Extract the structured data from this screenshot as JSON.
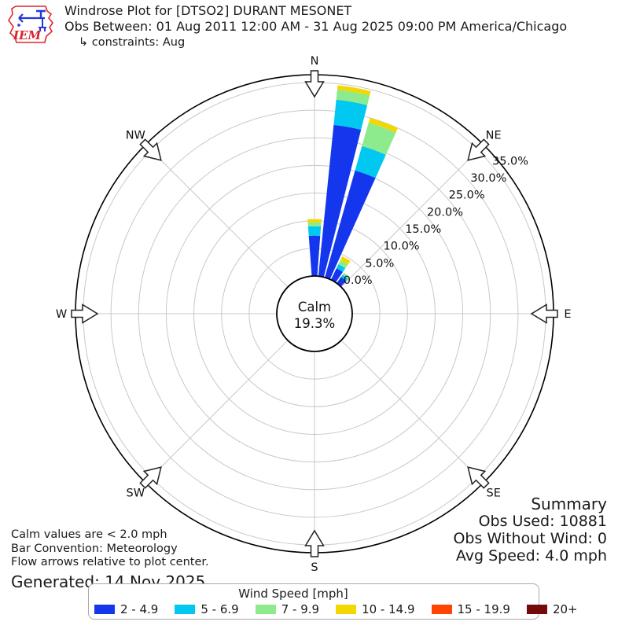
{
  "header": {
    "title": "Windrose Plot for [DTSO2] DURANT MESONET",
    "subtitle": "Obs Between: 01 Aug 2011 12:00 AM - 31 Aug 2025 09:00 PM America/Chicago",
    "constraints": "↳ constraints: Aug",
    "logo_text": "IEM"
  },
  "summary": {
    "title": "Summary",
    "obs_used": "Obs Used: 10881",
    "obs_without_wind": "Obs Without Wind: 0",
    "avg_speed": "Avg Speed: 4.0 mph"
  },
  "footnotes": {
    "calm_note": "Calm values are < 2.0 mph",
    "convention_note": "Bar Convention: Meteorology",
    "arrows_note": "Flow arrows relative to plot center.",
    "generated": "Generated: 14 Nov 2025"
  },
  "legend": {
    "title": "Wind Speed [mph]",
    "bins": [
      {
        "label": "2 - 4.9",
        "color": "#1437ee"
      },
      {
        "label": "5 - 6.9",
        "color": "#00c8f0"
      },
      {
        "label": "7 - 9.9",
        "color": "#8deb8d"
      },
      {
        "label": "10 - 14.9",
        "color": "#f2d800"
      },
      {
        "label": "15 - 19.9",
        "color": "#ff4500"
      },
      {
        "label": "20+",
        "color": "#750a0a"
      }
    ]
  },
  "chart_data": {
    "type": "windrose-polar-bar",
    "title": "Windrose Plot for [DTSO2] DURANT MESONET",
    "calm": {
      "label": "Calm",
      "percent": "19.3%"
    },
    "compass_labels": [
      "N",
      "NE",
      "E",
      "SE",
      "S",
      "SW",
      "W",
      "NW"
    ],
    "ring_ticks_percent": [
      0,
      5,
      10,
      15,
      20,
      25,
      30,
      35
    ],
    "ring_tick_labels": [
      "0.0%",
      "5.0%",
      "10.0%",
      "15.0%",
      "20.0%",
      "25.0%",
      "30.0%",
      "35.0%"
    ],
    "r_axis_max_percent": 36.4,
    "grid": true,
    "legend_position": "bottom",
    "speed_bins_mph": [
      "2 - 4.9",
      "5 - 6.9",
      "7 - 9.9",
      "10 - 14.9",
      "15 - 19.9",
      "20+"
    ],
    "bin_colors": [
      "#1437ee",
      "#00c8f0",
      "#8deb8d",
      "#f2d800",
      "#ff4500",
      "#750a0a"
    ],
    "bar_angular_width_deg": 8.4,
    "series": [
      {
        "direction_deg": 0,
        "frequencies_percent": [
          7.3,
          1.7,
          0.7,
          0.6,
          0,
          0
        ]
      },
      {
        "direction_deg": 10,
        "frequencies_percent": [
          27.5,
          4.6,
          1.8,
          0.8,
          0,
          0
        ]
      },
      {
        "direction_deg": 20,
        "frequencies_percent": [
          20.1,
          4.6,
          4.4,
          0.9,
          0,
          0
        ]
      },
      {
        "direction_deg": 30,
        "frequencies_percent": [
          2.3,
          0.8,
          0.8,
          0.8,
          0,
          0
        ]
      },
      {
        "direction_deg": 40,
        "frequencies_percent": [
          1.4,
          0.5,
          0.4,
          0,
          0,
          0
        ]
      }
    ]
  }
}
